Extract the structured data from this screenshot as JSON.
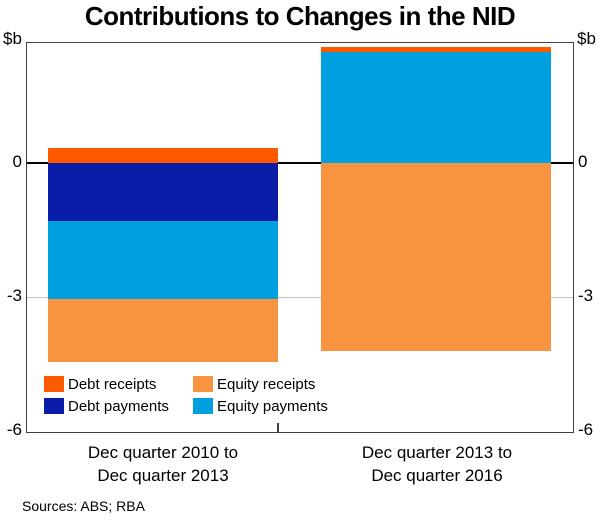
{
  "title": "Contributions to Changes in the NID",
  "axis": {
    "unit_left": "$b",
    "unit_right": "$b",
    "yticks_labels": [
      "0",
      "-3",
      "-6"
    ]
  },
  "colors": {
    "Debt receipts": "#FF5A00",
    "Debt payments": "#0A1DA8",
    "Equity receipts": "#F89440",
    "Equity payments": "#009FDF"
  },
  "legend": {
    "rows": [
      [
        {
          "label": "Debt receipts",
          "series": "Debt receipts"
        },
        {
          "label": "Equity receipts",
          "series": "Equity receipts"
        }
      ],
      [
        {
          "label": "Debt payments",
          "series": "Debt payments"
        },
        {
          "label": "Equity payments",
          "series": "Equity payments"
        }
      ]
    ]
  },
  "chart_data": {
    "type": "bar",
    "stacked": true,
    "title": "Contributions to Changes in the NID",
    "ylabel": "$b",
    "ylim": [
      -6,
      2.7
    ],
    "yticks": [
      0,
      -3,
      -6
    ],
    "grid": "horizontal gridline at -3 (light grey), solid black line at 0",
    "legend_position": "inside bottom-left",
    "categories": [
      "Dec quarter 2010 to Dec quarter 2013",
      "Dec quarter 2013 to Dec quarter 2016"
    ],
    "category_label_lines": [
      [
        "Dec quarter 2010 to",
        "Dec quarter 2013"
      ],
      [
        "Dec quarter 2013 to",
        "Dec quarter 2016"
      ]
    ],
    "series": [
      {
        "name": "Debt receipts",
        "values": [
          0.35,
          0.1
        ]
      },
      {
        "name": "Debt payments",
        "values": [
          -1.3,
          0
        ]
      },
      {
        "name": "Equity receipts",
        "values": [
          -1.4,
          -4.2
        ]
      },
      {
        "name": "Equity payments",
        "values": [
          -1.75,
          2.5
        ]
      }
    ],
    "bar_segment_order": [
      {
        "positive": [
          [
            "Debt receipts",
            0.35
          ]
        ],
        "negative": [
          [
            "Debt payments",
            -1.3
          ],
          [
            "Equity payments",
            -1.75
          ],
          [
            "Equity receipts",
            -1.4
          ]
        ]
      },
      {
        "positive": [
          [
            "Equity payments",
            2.5
          ],
          [
            "Debt receipts",
            0.1
          ]
        ],
        "negative": [
          [
            "Equity receipts",
            -4.2
          ]
        ]
      }
    ]
  },
  "footer": {
    "sources": "Sources: ABS; RBA"
  }
}
